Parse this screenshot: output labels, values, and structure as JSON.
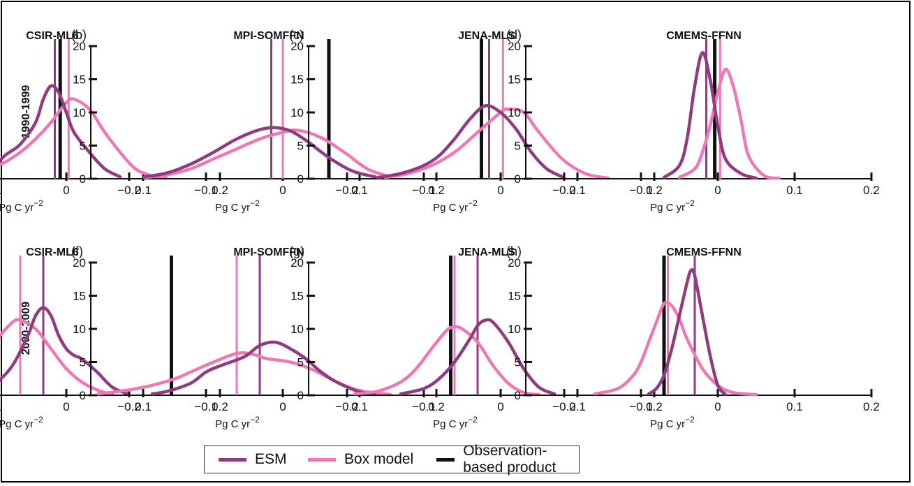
{
  "colors": {
    "esm": "#8e3b7f",
    "box": "#ef78b4",
    "obs": "#111111"
  },
  "row_labels": [
    "1990-1999",
    "2000-2009"
  ],
  "legend": [
    {
      "label": "ESM",
      "color": "#8e3b7f"
    },
    {
      "label": "Box model",
      "color": "#ef78b4"
    },
    {
      "label": "Observation-based product",
      "color": "#111111"
    }
  ],
  "chart_data": [
    {
      "panel": "(a)",
      "title": "CSIR-ML6",
      "type": "line",
      "xlabel": "Pg C yr-2",
      "xlim": [
        -0.25,
        0.2
      ],
      "ylim": [
        0,
        20
      ],
      "xticks": [
        "-0.2",
        "-0.1",
        "0",
        "0.1",
        "0.2"
      ],
      "yticks": [
        "0",
        "5",
        "10",
        "15",
        "20"
      ],
      "vlines": {
        "esm": -0.015,
        "box": 0.003,
        "obs": -0.008
      },
      "series": [
        {
          "name": "ESM",
          "x": [
            -0.12,
            -0.1,
            -0.08,
            -0.06,
            -0.04,
            -0.03,
            -0.02,
            -0.01,
            0,
            0.01,
            0.03,
            0.05,
            0.07
          ],
          "y": [
            0.3,
            1.2,
            3.5,
            5.2,
            8.5,
            12,
            14,
            13,
            10,
            7,
            4,
            1.5,
            0.3
          ]
        },
        {
          "name": "Box model",
          "x": [
            -0.14,
            -0.12,
            -0.1,
            -0.08,
            -0.06,
            -0.04,
            -0.02,
            0,
            0.01,
            0.03,
            0.05,
            0.07,
            0.09,
            0.11,
            0.13
          ],
          "y": [
            0.2,
            0.8,
            1.5,
            2.5,
            4,
            6,
            8.5,
            11.5,
            12,
            10.5,
            7,
            4,
            1.5,
            0.5,
            0.1
          ]
        }
      ]
    },
    {
      "panel": "(b)",
      "title": "MPI-SOMFFN",
      "type": "line",
      "xlabel": "Pg C yr-2",
      "xlim": [
        -0.25,
        0.2
      ],
      "ylim": [
        0,
        20
      ],
      "xticks": [
        "-0.2",
        "-0.1",
        "0",
        "0.1",
        "0.2"
      ],
      "yticks": [
        "0",
        "5",
        "10",
        "15",
        "20"
      ],
      "vlines": {
        "esm": -0.015,
        "box": 0.0,
        "obs": 0.06
      },
      "series": [
        {
          "name": "ESM",
          "x": [
            -0.18,
            -0.15,
            -0.12,
            -0.09,
            -0.06,
            -0.03,
            -0.01,
            0.01,
            0.03,
            0.06,
            0.09,
            0.12
          ],
          "y": [
            0.3,
            0.9,
            2.2,
            4,
            6,
            7.4,
            7.7,
            7.2,
            5.8,
            3.2,
            1.2,
            0.3
          ]
        },
        {
          "name": "Box model",
          "x": [
            -0.18,
            -0.15,
            -0.12,
            -0.09,
            -0.06,
            -0.03,
            0,
            0.02,
            0.05,
            0.08,
            0.11,
            0.14
          ],
          "y": [
            0.2,
            0.6,
            1.5,
            3,
            4.5,
            6,
            7,
            7.3,
            6.2,
            4,
            1.5,
            0.3
          ]
        }
      ]
    },
    {
      "panel": "(c)",
      "title": "JENA-MLS",
      "type": "line",
      "xlabel": "Pg C yr-2",
      "xlim": [
        -0.25,
        0.2
      ],
      "ylim": [
        0,
        20
      ],
      "xticks": [
        "-0.2",
        "-0.1",
        "0",
        "0.1",
        "0.2"
      ],
      "yticks": [
        "0",
        "5",
        "10",
        "15",
        "20"
      ],
      "vlines": {
        "esm": -0.015,
        "box": 0.003,
        "obs": -0.025
      },
      "series": [
        {
          "name": "ESM",
          "x": [
            -0.16,
            -0.13,
            -0.1,
            -0.08,
            -0.06,
            -0.04,
            -0.02,
            0,
            0.02,
            0.04,
            0.06,
            0.08
          ],
          "y": [
            0.2,
            0.8,
            2,
            3.5,
            6,
            9,
            11,
            10,
            7.5,
            4,
            1.5,
            0.3
          ]
        },
        {
          "name": "Box model",
          "x": [
            -0.15,
            -0.12,
            -0.09,
            -0.06,
            -0.03,
            0,
            0.01,
            0.03,
            0.05,
            0.08,
            0.11,
            0.14
          ],
          "y": [
            0.2,
            0.8,
            2,
            4,
            7,
            10,
            10.5,
            10,
            7,
            3,
            0.8,
            0.1
          ]
        }
      ]
    },
    {
      "panel": "(d)",
      "title": "CMEMS-FFNN",
      "type": "line",
      "xlabel": "Pg C yr-2",
      "xlim": [
        -0.25,
        0.2
      ],
      "ylim": [
        0,
        20
      ],
      "xticks": [
        "-0.2",
        "-0.1",
        "0",
        "0.1",
        "0.2"
      ],
      "yticks": [
        "0",
        "5",
        "10",
        "15",
        "20"
      ],
      "vlines": {
        "esm": -0.015,
        "box": 0.003,
        "obs": -0.004
      },
      "series": [
        {
          "name": "ESM",
          "x": [
            -0.07,
            -0.05,
            -0.04,
            -0.03,
            -0.02,
            -0.01,
            0,
            0.01,
            0.03,
            0.05
          ],
          "y": [
            0.2,
            2,
            6,
            14,
            19,
            15,
            8,
            3,
            0.8,
            0.1
          ]
        },
        {
          "name": "Box model",
          "x": [
            -0.05,
            -0.03,
            -0.02,
            -0.01,
            0,
            0.01,
            0.02,
            0.03,
            0.04,
            0.06,
            0.08
          ],
          "y": [
            0.2,
            1.5,
            4,
            8,
            13,
            16.5,
            14,
            9,
            3.5,
            0.5,
            0.1
          ]
        }
      ]
    },
    {
      "panel": "(e)",
      "title": "CSIR-ML6",
      "type": "line",
      "xlabel": "Pg C yr-2",
      "xlim": [
        -0.25,
        0.2
      ],
      "ylim": [
        0,
        20
      ],
      "xticks": [
        "-0.2",
        "-0.1",
        "0",
        "0.1",
        "0.2"
      ],
      "yticks": [
        "0",
        "5",
        "10",
        "15",
        "20"
      ],
      "vlines": {
        "esm": -0.03,
        "box": -0.06,
        "obs": -0.09
      },
      "series": [
        {
          "name": "ESM",
          "x": [
            -0.13,
            -0.11,
            -0.09,
            -0.07,
            -0.05,
            -0.04,
            -0.03,
            -0.02,
            -0.01,
            0,
            0.01,
            0.02,
            0.04,
            0.06,
            0.08
          ],
          "y": [
            0.2,
            0.8,
            2,
            4.5,
            9,
            12,
            13.2,
            12,
            9,
            7,
            6,
            5.5,
            3.5,
            1.2,
            0.2
          ]
        },
        {
          "name": "Box model",
          "x": [
            -0.2,
            -0.18,
            -0.15,
            -0.13,
            -0.11,
            -0.09,
            -0.07,
            -0.06,
            -0.04,
            -0.02,
            0,
            0.02,
            0.04,
            0.06
          ],
          "y": [
            0.2,
            0.8,
            2.5,
            3.8,
            5.5,
            8.5,
            11,
            11.3,
            10,
            7,
            4,
            2,
            0.8,
            0.1
          ]
        }
      ]
    },
    {
      "panel": "(f)",
      "title": "MPI-SOMFFN",
      "type": "line",
      "xlabel": "Pg C yr-2",
      "xlim": [
        -0.25,
        0.2
      ],
      "ylim": [
        0,
        20
      ],
      "xticks": [
        "-0.2",
        "-0.1",
        "0",
        "0.1",
        "0.2"
      ],
      "yticks": [
        "0",
        "5",
        "10",
        "15",
        "20"
      ],
      "vlines": {
        "esm": -0.03,
        "box": -0.06,
        "obs": -0.145
      },
      "series": [
        {
          "name": "ESM",
          "x": [
            -0.17,
            -0.15,
            -0.12,
            -0.1,
            -0.08,
            -0.05,
            -0.03,
            -0.01,
            0.01,
            0.03,
            0.05,
            0.07,
            0.1,
            0.12
          ],
          "y": [
            0.2,
            0.6,
            1.8,
            3.5,
            4.5,
            5.8,
            7.5,
            8,
            7,
            5.5,
            3.5,
            2,
            0.5,
            0.1
          ]
        },
        {
          "name": "Box model",
          "x": [
            -0.24,
            -0.2,
            -0.17,
            -0.14,
            -0.12,
            -0.09,
            -0.06,
            -0.04,
            -0.02,
            0.01,
            0.04,
            0.07,
            0.1,
            0.14
          ],
          "y": [
            0.2,
            0.8,
            1.5,
            2.5,
            3.5,
            5,
            6.3,
            6.2,
            5.5,
            5,
            3.8,
            2,
            0.7,
            0.1
          ]
        }
      ]
    },
    {
      "panel": "(g)",
      "title": "JENA-MLS",
      "type": "line",
      "xlabel": "Pg C yr-2",
      "xlim": [
        -0.25,
        0.2
      ],
      "ylim": [
        0,
        20
      ],
      "xticks": [
        "-0.2",
        "-0.1",
        "0",
        "0.1",
        "0.2"
      ],
      "yticks": [
        "0",
        "5",
        "10",
        "15",
        "20"
      ],
      "vlines": {
        "esm": -0.03,
        "box": -0.06,
        "obs": -0.065
      },
      "series": [
        {
          "name": "ESM",
          "x": [
            -0.13,
            -0.1,
            -0.08,
            -0.06,
            -0.04,
            -0.03,
            -0.02,
            -0.01,
            0.01,
            0.03,
            0.05,
            0.07
          ],
          "y": [
            0.2,
            1,
            2.5,
            5,
            8.5,
            10.5,
            11.3,
            11,
            8,
            4,
            1.2,
            0.2
          ]
        },
        {
          "name": "Box model",
          "x": [
            -0.19,
            -0.16,
            -0.13,
            -0.11,
            -0.09,
            -0.07,
            -0.06,
            -0.05,
            -0.03,
            -0.01,
            0.01,
            0.03,
            0.05
          ],
          "y": [
            0.2,
            0.6,
            2,
            4,
            7,
            9.8,
            10.3,
            10,
            8,
            4.5,
            1.8,
            0.4,
            0.1
          ]
        }
      ]
    },
    {
      "panel": "(h)",
      "title": "CMEMS-FFNN",
      "type": "line",
      "xlabel": "Pg C yr-2",
      "xlim": [
        -0.25,
        0.2
      ],
      "ylim": [
        0,
        20
      ],
      "xticks": [
        "-0.2",
        "-0.1",
        "0",
        "0.1",
        "0.2"
      ],
      "yticks": [
        "0",
        "5",
        "10",
        "15",
        "20"
      ],
      "vlines": {
        "esm": -0.03,
        "box": -0.065,
        "obs": -0.07
      },
      "series": [
        {
          "name": "ESM",
          "x": [
            -0.09,
            -0.08,
            -0.07,
            -0.06,
            -0.05,
            -0.04,
            -0.035,
            -0.03,
            -0.02,
            -0.01,
            0,
            0.01
          ],
          "y": [
            0.2,
            1,
            3,
            7,
            12,
            17,
            18.8,
            18,
            12,
            6,
            1.5,
            0.1
          ]
        },
        {
          "name": "Box model",
          "x": [
            -0.16,
            -0.13,
            -0.11,
            -0.1,
            -0.09,
            -0.08,
            -0.07,
            -0.06,
            -0.05,
            -0.04,
            -0.02,
            0,
            0.02,
            0.05
          ],
          "y": [
            0.2,
            1,
            3,
            5,
            8,
            11,
            13.8,
            13.5,
            11.5,
            8.5,
            4,
            1.5,
            0.4,
            0.1
          ]
        }
      ]
    }
  ]
}
